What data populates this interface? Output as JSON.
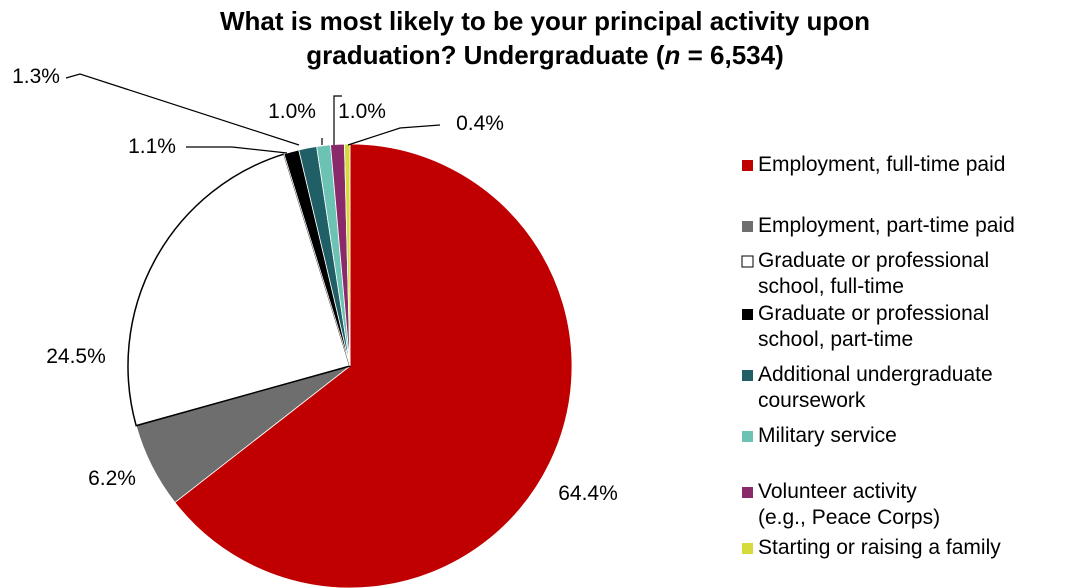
{
  "chart_data": {
    "type": "pie",
    "title": {
      "line1": "What is most likely to be your principal activity upon",
      "line2_pre": "graduation? Undergraduate (",
      "line2_italic": "n",
      "line2_post": " = 6,534)"
    },
    "legend_position": "right",
    "slices": [
      {
        "label_lines": [
          "Employment, full-time paid"
        ],
        "value": 64.4,
        "value_label": "64.4%",
        "color": "#C00000"
      },
      {
        "label_lines": [
          "Employment, part-time paid"
        ],
        "value": 6.2,
        "value_label": "6.2%",
        "color": "#6E6E6E"
      },
      {
        "label_lines": [
          "Graduate or professional",
          "school, full-time"
        ],
        "value": 24.5,
        "value_label": "24.5%",
        "color": "#FFFFFF"
      },
      {
        "label_lines": [
          "Graduate or professional",
          "school, part-time"
        ],
        "value": 1.1,
        "value_label": "1.1%",
        "color": "#000000"
      },
      {
        "label_lines": [
          "Additional undergraduate",
          "coursework"
        ],
        "value": 1.3,
        "value_label": "1.3%",
        "color": "#215F66"
      },
      {
        "label_lines": [
          "Military service"
        ],
        "value": 1.0,
        "value_label": "1.0%",
        "color": "#6CC3B3"
      },
      {
        "label_lines": [
          "Volunteer activity",
          "(e.g., Peace Corps)"
        ],
        "value": 1.0,
        "value_label": "1.0%",
        "color": "#8B2A6B"
      },
      {
        "label_lines": [
          "Starting or raising a family"
        ],
        "value": 0.4,
        "value_label": "0.4%",
        "color": "#D4DB3B"
      }
    ]
  }
}
